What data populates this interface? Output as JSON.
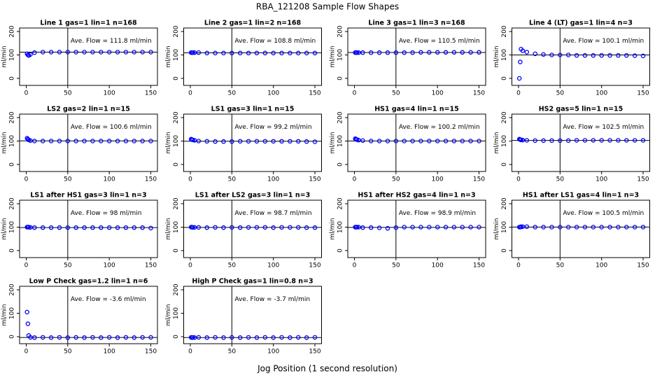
{
  "title": "RBA_121208  Sample Flow Shapes",
  "x_label": "Jog Position (1 second resolution)",
  "chart_data": [
    {
      "type": "scatter",
      "title": "Line 1 gas=1 lin=1 n=168",
      "annotation": "Ave. Flow = 111.8  ml/min",
      "y_label": "ml/min",
      "color": "#0000ff",
      "xlim": [
        -8,
        158
      ],
      "ylim": [
        -30,
        215
      ],
      "xticks": [
        0,
        50,
        100,
        150
      ],
      "yticks": [
        0,
        100,
        200
      ],
      "vline": 50,
      "hline": 111.8,
      "x": [
        1,
        2,
        3,
        5,
        10,
        20,
        30,
        40,
        50,
        60,
        70,
        80,
        90,
        100,
        110,
        120,
        130,
        140,
        150
      ],
      "values": [
        105,
        100,
        98,
        102,
        110,
        112,
        112,
        112,
        112,
        112,
        112,
        112,
        112,
        112,
        112,
        112,
        112,
        112,
        112
      ]
    },
    {
      "type": "scatter",
      "title": "Line 2 gas=1 lin=2 n=168",
      "annotation": "Ave. Flow = 108.8  ml/min",
      "y_label": "ml/min",
      "color": "#0000ff",
      "xlim": [
        -8,
        158
      ],
      "ylim": [
        -30,
        215
      ],
      "xticks": [
        0,
        50,
        100,
        150
      ],
      "yticks": [
        0,
        100,
        200
      ],
      "vline": 50,
      "hline": 108.8,
      "x": [
        1,
        2,
        3,
        5,
        10,
        20,
        30,
        40,
        50,
        60,
        70,
        80,
        90,
        100,
        110,
        120,
        130,
        140,
        150
      ],
      "values": [
        110,
        110,
        110,
        110,
        110,
        108,
        108,
        108,
        108,
        108,
        108,
        108,
        108,
        108,
        108,
        108,
        108,
        108,
        108
      ]
    },
    {
      "type": "scatter",
      "title": "Line 3 gas=1 lin=3 n=168",
      "annotation": "Ave. Flow = 110.5  ml/min",
      "y_label": "ml/min",
      "color": "#0000ff",
      "xlim": [
        -8,
        158
      ],
      "ylim": [
        -30,
        215
      ],
      "xticks": [
        0,
        50,
        100,
        150
      ],
      "yticks": [
        0,
        100,
        200
      ],
      "vline": 50,
      "hline": 110.5,
      "x": [
        1,
        2,
        3,
        5,
        10,
        20,
        30,
        40,
        50,
        60,
        70,
        80,
        90,
        100,
        110,
        120,
        130,
        140,
        150
      ],
      "values": [
        110,
        110,
        110,
        110,
        110,
        110,
        110,
        110,
        110,
        110,
        110,
        111,
        111,
        111,
        111,
        111,
        111,
        111,
        111
      ]
    },
    {
      "type": "scatter",
      "title": "Line 4 (LT) gas=1 lin=4 n=3",
      "annotation": "Ave. Flow = 100.1  ml/min",
      "y_label": "ml/min",
      "color": "#0000ff",
      "xlim": [
        -8,
        158
      ],
      "ylim": [
        -30,
        215
      ],
      "xticks": [
        0,
        50,
        100,
        150
      ],
      "yticks": [
        0,
        100,
        200
      ],
      "vline": 50,
      "hline": 100.1,
      "x": [
        1,
        2,
        3,
        5,
        10,
        20,
        30,
        40,
        50,
        60,
        70,
        80,
        90,
        100,
        110,
        120,
        130,
        140,
        150
      ],
      "values": [
        0,
        70,
        125,
        118,
        112,
        105,
        102,
        100,
        100,
        100,
        98,
        98,
        98,
        98,
        98,
        98,
        98,
        97,
        96
      ]
    },
    {
      "type": "scatter",
      "title": "LS2 gas=2 lin=1 n=15",
      "annotation": "Ave. Flow = 100.6  ml/min",
      "y_label": "ml/min",
      "color": "#0000ff",
      "xlim": [
        -8,
        158
      ],
      "ylim": [
        -30,
        215
      ],
      "xticks": [
        0,
        50,
        100,
        150
      ],
      "yticks": [
        0,
        100,
        200
      ],
      "vline": 50,
      "hline": 100.6,
      "x": [
        1,
        2,
        3,
        5,
        10,
        20,
        30,
        40,
        50,
        60,
        70,
        80,
        90,
        100,
        110,
        120,
        130,
        140,
        150
      ],
      "values": [
        112,
        108,
        105,
        102,
        100,
        100,
        100,
        100,
        100,
        100,
        100,
        100,
        100,
        100,
        100,
        100,
        100,
        100,
        100
      ]
    },
    {
      "type": "scatter",
      "title": "LS1 gas=3 lin=1 n=15",
      "annotation": "Ave. Flow = 99.2  ml/min",
      "y_label": "ml/min",
      "color": "#0000ff",
      "xlim": [
        -8,
        158
      ],
      "ylim": [
        -30,
        215
      ],
      "xticks": [
        0,
        50,
        100,
        150
      ],
      "yticks": [
        0,
        100,
        200
      ],
      "vline": 50,
      "hline": 99.2,
      "x": [
        1,
        2,
        3,
        5,
        10,
        20,
        30,
        40,
        50,
        60,
        70,
        80,
        90,
        100,
        110,
        120,
        130,
        140,
        150
      ],
      "values": [
        108,
        106,
        105,
        103,
        100,
        99,
        98,
        98,
        98,
        99,
        99,
        99,
        99,
        99,
        99,
        99,
        99,
        98,
        97
      ]
    },
    {
      "type": "scatter",
      "title": "HS1 gas=4 lin=1 n=15",
      "annotation": "Ave. Flow = 100.2  ml/min",
      "y_label": "ml/min",
      "color": "#0000ff",
      "xlim": [
        -8,
        158
      ],
      "ylim": [
        -30,
        215
      ],
      "xticks": [
        0,
        50,
        100,
        150
      ],
      "yticks": [
        0,
        100,
        200
      ],
      "vline": 50,
      "hline": 100.2,
      "x": [
        1,
        2,
        3,
        5,
        10,
        20,
        30,
        40,
        50,
        60,
        70,
        80,
        90,
        100,
        110,
        120,
        130,
        140,
        150
      ],
      "values": [
        110,
        108,
        106,
        104,
        102,
        100,
        100,
        100,
        100,
        100,
        100,
        100,
        100,
        100,
        100,
        100,
        100,
        100,
        100
      ]
    },
    {
      "type": "scatter",
      "title": "HS2 gas=5 lin=1 n=15",
      "annotation": "Ave. Flow = 102.5  ml/min",
      "y_label": "ml/min",
      "color": "#0000ff",
      "xlim": [
        -8,
        158
      ],
      "ylim": [
        -30,
        215
      ],
      "xticks": [
        0,
        50,
        100,
        150
      ],
      "yticks": [
        0,
        100,
        200
      ],
      "vline": 50,
      "hline": 102.5,
      "x": [
        1,
        2,
        3,
        5,
        10,
        20,
        30,
        40,
        50,
        60,
        70,
        80,
        90,
        100,
        110,
        120,
        130,
        140,
        150
      ],
      "values": [
        108,
        106,
        105,
        104,
        103,
        102,
        102,
        102,
        102,
        102,
        103,
        103,
        103,
        103,
        103,
        103,
        103,
        103,
        103
      ]
    },
    {
      "type": "scatter",
      "title": "LS1 after HS1 gas=3 lin=1 n=3",
      "annotation": "Ave. Flow = 98  ml/min",
      "y_label": "ml/min",
      "color": "#0000ff",
      "xlim": [
        -8,
        158
      ],
      "ylim": [
        -30,
        215
      ],
      "xticks": [
        0,
        50,
        100,
        150
      ],
      "yticks": [
        0,
        100,
        200
      ],
      "vline": 50,
      "hline": 98,
      "x": [
        1,
        2,
        3,
        5,
        10,
        20,
        30,
        40,
        50,
        60,
        70,
        80,
        90,
        100,
        110,
        120,
        130,
        140,
        150
      ],
      "values": [
        100,
        100,
        100,
        99,
        98,
        98,
        98,
        98,
        98,
        98,
        98,
        98,
        98,
        98,
        98,
        98,
        98,
        98,
        96
      ]
    },
    {
      "type": "scatter",
      "title": "LS1 after LS2 gas=3 lin=1 n=3",
      "annotation": "Ave. Flow = 98.7  ml/min",
      "y_label": "ml/min",
      "color": "#0000ff",
      "xlim": [
        -8,
        158
      ],
      "ylim": [
        -30,
        215
      ],
      "xticks": [
        0,
        50,
        100,
        150
      ],
      "yticks": [
        0,
        100,
        200
      ],
      "vline": 50,
      "hline": 98.7,
      "x": [
        1,
        2,
        3,
        5,
        10,
        20,
        30,
        40,
        50,
        60,
        70,
        80,
        90,
        100,
        110,
        120,
        130,
        140,
        150
      ],
      "values": [
        100,
        100,
        99,
        99,
        99,
        98,
        99,
        98,
        99,
        98,
        99,
        99,
        99,
        98,
        99,
        99,
        99,
        98,
        98
      ]
    },
    {
      "type": "scatter",
      "title": "HS1 after HS2 gas=4 lin=1 n=3",
      "annotation": "Ave. Flow = 98.9  ml/min",
      "y_label": "ml/min",
      "color": "#0000ff",
      "xlim": [
        -8,
        158
      ],
      "ylim": [
        -30,
        215
      ],
      "xticks": [
        0,
        50,
        100,
        150
      ],
      "yticks": [
        0,
        100,
        200
      ],
      "vline": 50,
      "hline": 98.9,
      "x": [
        1,
        2,
        3,
        5,
        10,
        20,
        30,
        40,
        50,
        60,
        70,
        80,
        90,
        100,
        110,
        120,
        130,
        140,
        150
      ],
      "values": [
        100,
        100,
        100,
        100,
        98,
        98,
        97,
        95,
        98,
        100,
        100,
        100,
        100,
        100,
        100,
        100,
        100,
        100,
        100
      ]
    },
    {
      "type": "scatter",
      "title": "HS1 after LS1 gas=4 lin=1 n=3",
      "annotation": "Ave. Flow = 100.5  ml/min",
      "y_label": "ml/min",
      "color": "#0000ff",
      "xlim": [
        -8,
        158
      ],
      "ylim": [
        -30,
        215
      ],
      "xticks": [
        0,
        50,
        100,
        150
      ],
      "yticks": [
        0,
        100,
        200
      ],
      "vline": 50,
      "hline": 100.5,
      "x": [
        1,
        2,
        3,
        5,
        10,
        20,
        30,
        40,
        50,
        60,
        70,
        80,
        90,
        100,
        110,
        120,
        130,
        140,
        150
      ],
      "values": [
        100,
        100,
        102,
        102,
        102,
        100,
        100,
        100,
        100,
        100,
        100,
        100,
        100,
        100,
        100,
        100,
        100,
        100,
        100
      ]
    },
    {
      "type": "scatter",
      "title": "Low P Check gas=1.2 lin=1 n=6",
      "annotation": "Ave. Flow = -3.6  ml/min",
      "y_label": "ml/min",
      "color": "#0000ff",
      "xlim": [
        -8,
        158
      ],
      "ylim": [
        -30,
        215
      ],
      "xticks": [
        0,
        50,
        100,
        150
      ],
      "yticks": [
        0,
        100,
        200
      ],
      "vline": 50,
      "hline": -3.6,
      "x": [
        1,
        2,
        3,
        5,
        10,
        20,
        30,
        40,
        50,
        60,
        70,
        80,
        90,
        100,
        110,
        120,
        130,
        140,
        150
      ],
      "values": [
        105,
        55,
        5,
        -3,
        -4,
        -3,
        -4,
        -3,
        -4,
        -3,
        -4,
        -3,
        -4,
        -3,
        -4,
        -3,
        -4,
        -3,
        -3
      ]
    },
    {
      "type": "scatter",
      "title": "High P Check gas=1 lin=0.8 n=3",
      "annotation": "Ave. Flow = -3.7  ml/min",
      "y_label": "ml/min",
      "color": "#0000ff",
      "xlim": [
        -8,
        158
      ],
      "ylim": [
        -30,
        215
      ],
      "xticks": [
        0,
        50,
        100,
        150
      ],
      "yticks": [
        0,
        100,
        200
      ],
      "vline": 50,
      "hline": -3.7,
      "x": [
        1,
        2,
        3,
        5,
        10,
        20,
        30,
        40,
        50,
        60,
        70,
        80,
        90,
        100,
        110,
        120,
        130,
        140,
        150
      ],
      "values": [
        -3,
        -4,
        -3,
        -4,
        -3,
        -4,
        -3,
        -4,
        -3,
        -4,
        -3,
        -4,
        -3,
        -4,
        -3,
        -4,
        -3,
        -4,
        -3
      ]
    }
  ]
}
